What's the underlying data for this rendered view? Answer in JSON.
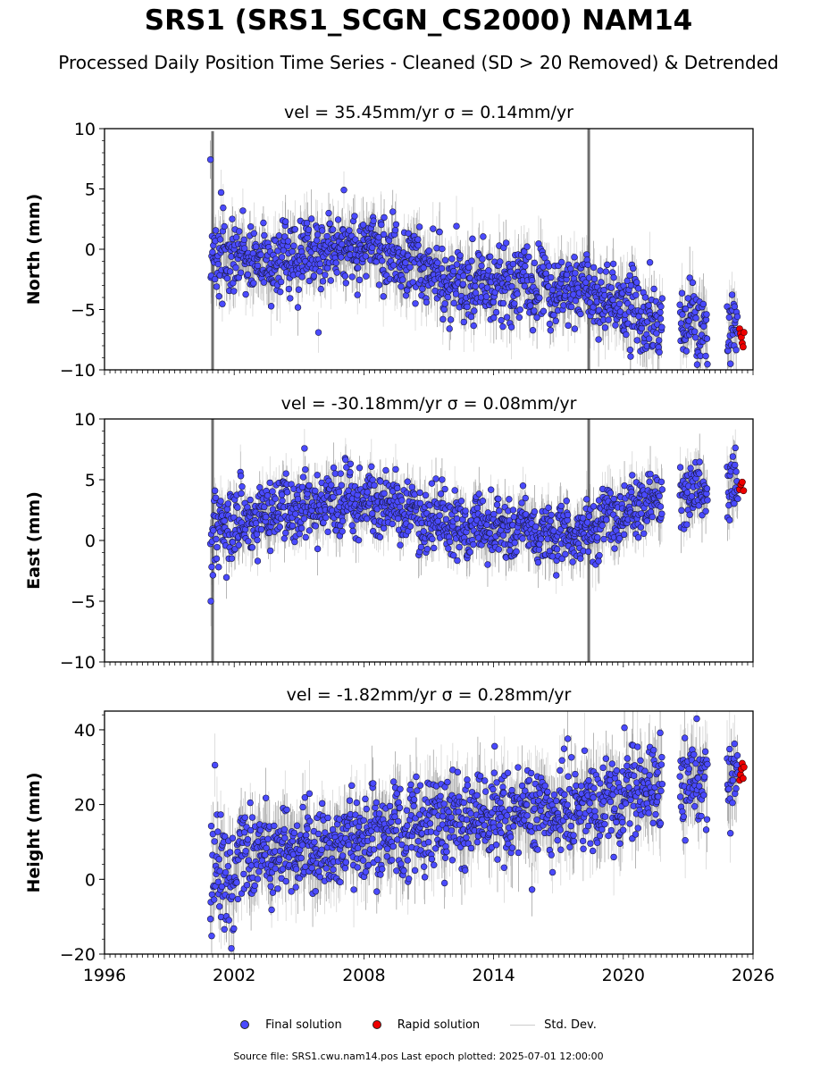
{
  "title": "SRS1 (SRS1_SCGN_CS2000) NAM14",
  "subtitle": "Processed Daily Position Time Series - Cleaned (SD > 20 Removed) & Detrended",
  "footer": "Source file: SRS1.cwu.nam14.pos  Last epoch plotted: 2025-07-01 12:00:00",
  "colors": {
    "final": "#4a4aff",
    "rapid": "#ee0000",
    "stddev": "#aaaaaa"
  },
  "legend": [
    {
      "label": "Final solution",
      "marker": "dot",
      "color": "#4a4aff"
    },
    {
      "label": "Rapid solution",
      "marker": "dot",
      "color": "#ee0000"
    },
    {
      "label": "Std. Dev.",
      "marker": "line",
      "color": "#cccccc"
    }
  ],
  "chart_data": [
    {
      "type": "scatter",
      "title": "vel = 35.45mm/yr   σ = 0.14mm/yr",
      "ylabel": "North (mm)",
      "xlim": [
        1996,
        2026
      ],
      "ylim": [
        -10,
        10
      ],
      "xticks": [
        "1996",
        "2002",
        "2008",
        "2014",
        "2020",
        "2026"
      ],
      "yticks": [
        "10",
        "5",
        "0",
        "−5",
        "−10"
      ],
      "ytick_values": [
        10,
        5,
        0,
        -5,
        -10
      ],
      "final_trend": [
        [
          2000.9,
          -0.3
        ],
        [
          2003,
          -1.2
        ],
        [
          2006,
          0.0
        ],
        [
          2008.5,
          0.3
        ],
        [
          2010,
          -1.0
        ],
        [
          2012,
          -2.6
        ],
        [
          2014,
          -3.2
        ],
        [
          2016,
          -3.0
        ],
        [
          2018,
          -3.4
        ],
        [
          2020,
          -4.8
        ],
        [
          2021.8,
          -6.0
        ],
        [
          2023.5,
          -6.3
        ],
        [
          2025.3,
          -6.6
        ]
      ],
      "final_spread": 1.5,
      "gaps": [
        [
          2021.8,
          2022.6
        ],
        [
          2023.9,
          2024.8
        ]
      ],
      "rapid": [
        [
          2025.38,
          -6.6
        ],
        [
          2025.42,
          -7.0
        ],
        [
          2025.46,
          -7.3
        ],
        [
          2025.5,
          -7.8
        ],
        [
          2025.54,
          -8.1
        ],
        [
          2025.58,
          -6.9
        ]
      ],
      "spikes": [
        [
          2001.0,
          -10,
          9.8
        ],
        [
          2018.4,
          -10,
          10
        ]
      ]
    },
    {
      "type": "scatter",
      "title": "vel = -30.18mm/yr   σ = 0.08mm/yr",
      "ylabel": "East (mm)",
      "xlim": [
        1996,
        2026
      ],
      "ylim": [
        -10,
        10
      ],
      "xticks": [
        "1996",
        "2002",
        "2008",
        "2014",
        "2020",
        "2026"
      ],
      "yticks": [
        "10",
        "5",
        "0",
        "−5",
        "−10"
      ],
      "ytick_values": [
        10,
        5,
        0,
        -5,
        -10
      ],
      "final_trend": [
        [
          2000.9,
          0.8
        ],
        [
          2002.5,
          1.8
        ],
        [
          2005,
          2.8
        ],
        [
          2008,
          3.2
        ],
        [
          2009.5,
          2.9
        ],
        [
          2010.5,
          1.6
        ],
        [
          2013,
          1.2
        ],
        [
          2016,
          0.6
        ],
        [
          2018,
          0.3
        ],
        [
          2019,
          1.3
        ],
        [
          2020.5,
          2.8
        ],
        [
          2021.8,
          3.6
        ],
        [
          2023.5,
          3.7
        ],
        [
          2025.3,
          4.3
        ]
      ],
      "final_spread": 1.3,
      "gaps": [
        [
          2021.8,
          2022.6
        ],
        [
          2023.9,
          2024.8
        ]
      ],
      "rapid": [
        [
          2025.38,
          4.2
        ],
        [
          2025.44,
          4.6
        ],
        [
          2025.5,
          4.8
        ],
        [
          2025.56,
          4.1
        ]
      ],
      "spikes": [
        [
          2001.0,
          -10,
          10
        ],
        [
          2018.4,
          -10,
          10
        ]
      ]
    },
    {
      "type": "scatter",
      "title": "vel = -1.82mm/yr   σ = 0.28mm/yr",
      "ylabel": "Height (mm)",
      "xlim": [
        1996,
        2026
      ],
      "ylim": [
        -20,
        45
      ],
      "xticks": [
        "1996",
        "2002",
        "2008",
        "2014",
        "2020",
        "2026"
      ],
      "yticks": [
        "40",
        "20",
        "0",
        "−20"
      ],
      "ytick_values": [
        40,
        20,
        0,
        -20
      ],
      "final_trend": [
        [
          2000.9,
          0.5
        ],
        [
          2002,
          4.0
        ],
        [
          2004,
          7.0
        ],
        [
          2006,
          9.0
        ],
        [
          2008,
          10.0
        ],
        [
          2010,
          12.5
        ],
        [
          2012,
          16.0
        ],
        [
          2014,
          18.0
        ],
        [
          2016,
          18.5
        ],
        [
          2018,
          19.0
        ],
        [
          2020,
          22.0
        ],
        [
          2021.8,
          25.0
        ],
        [
          2023.5,
          26.0
        ],
        [
          2025.3,
          28.5
        ]
      ],
      "final_spread": 6.0,
      "gaps": [
        [
          2021.8,
          2022.6
        ],
        [
          2023.9,
          2024.8
        ]
      ],
      "rapid": [
        [
          2025.38,
          26.5
        ],
        [
          2025.42,
          28.0
        ],
        [
          2025.46,
          29.5
        ],
        [
          2025.5,
          31.0
        ],
        [
          2025.54,
          27.0
        ],
        [
          2025.58,
          30.0
        ]
      ],
      "spikes": []
    }
  ]
}
